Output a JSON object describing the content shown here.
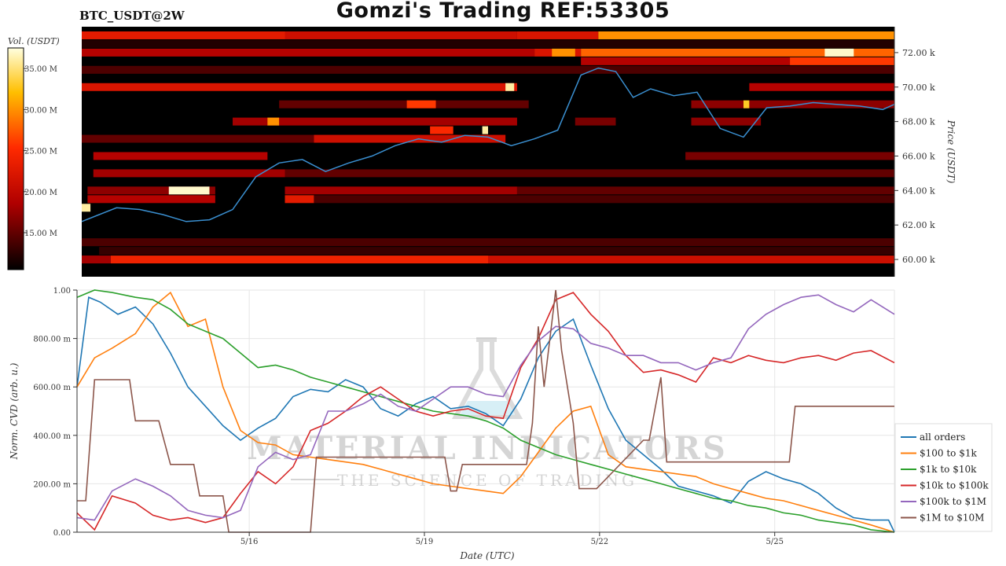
{
  "header": {
    "title": "Gomzi's Trading REF:53305",
    "pair": "BTC_USDT@2W"
  },
  "watermark": {
    "line1": "MATERIAL INDICATORS",
    "line2": "THE SCIENCE OF TRADING"
  },
  "colorbar": {
    "label": "Vol. (USDT)",
    "ticks": [
      "35.00 M",
      "30.00 M",
      "25.00 M",
      "20.00 M",
      "15.00 M"
    ],
    "tick_values": [
      35,
      30,
      25,
      20,
      15
    ],
    "range": [
      10.5,
      37.5
    ]
  },
  "chart_data": [
    {
      "type": "heatmap",
      "title": "",
      "ylabel": "Price (USDT)",
      "ylim": [
        59.0,
        73.5
      ],
      "ytick_labels": [
        "72.00 k",
        "70.00 k",
        "68.00 k",
        "66.00 k",
        "64.00 k",
        "62.00 k",
        "60.00 k"
      ],
      "ytick_values": [
        72,
        70,
        68,
        66,
        64,
        62,
        60
      ],
      "xlim": [
        0,
        14
      ],
      "price_series": {
        "x": [
          0,
          0.3,
          0.6,
          1.0,
          1.4,
          1.8,
          2.2,
          2.6,
          3.0,
          3.4,
          3.8,
          4.2,
          4.6,
          5.0,
          5.4,
          5.8,
          6.2,
          6.6,
          7.0,
          7.4,
          7.8,
          8.2,
          8.6,
          8.9,
          9.2,
          9.5,
          9.8,
          10.2,
          10.6,
          11.0,
          11.4,
          11.8,
          12.2,
          12.6,
          13.0,
          13.4,
          13.8,
          14.0
        ],
        "y": [
          62.2,
          62.6,
          63.0,
          62.9,
          62.6,
          62.2,
          62.3,
          62.9,
          64.8,
          65.6,
          65.8,
          65.1,
          65.6,
          66.0,
          66.6,
          67.0,
          66.8,
          67.2,
          67.1,
          66.6,
          67.0,
          67.5,
          70.7,
          71.1,
          70.9,
          69.4,
          69.9,
          69.5,
          69.7,
          67.6,
          67.1,
          68.8,
          68.9,
          69.1,
          69.0,
          68.9,
          68.7,
          69.0
        ]
      },
      "bands": [
        {
          "p": 73.0,
          "segs": [
            [
              0,
              3.5,
              23
            ],
            [
              3.5,
              7.5,
              21
            ],
            [
              7.5,
              8.9,
              22
            ],
            [
              8.9,
              14,
              30
            ]
          ]
        },
        {
          "p": 72.5,
          "segs": [
            [
              0,
              14,
              12
            ]
          ]
        },
        {
          "p": 72.0,
          "segs": [
            [
              0,
              7.8,
              19
            ],
            [
              7.8,
              8.6,
              22
            ],
            [
              8.6,
              14,
              28
            ]
          ]
        },
        {
          "p": 71.5,
          "segs": [
            [
              8.6,
              12.2,
              19
            ],
            [
              12.2,
              14,
              26
            ]
          ]
        },
        {
          "p": 71.0,
          "segs": [
            [
              0,
              14,
              14
            ]
          ]
        },
        {
          "p": 70.0,
          "segs": [
            [
              0,
              7.5,
              22
            ],
            [
              11.5,
              14,
              19
            ]
          ]
        },
        {
          "p": 69.0,
          "segs": [
            [
              3.4,
              7.7,
              15
            ],
            [
              10.5,
              14,
              17
            ]
          ]
        },
        {
          "p": 68.0,
          "segs": [
            [
              2.6,
              7.5,
              18
            ],
            [
              8.5,
              9.2,
              16
            ],
            [
              10.5,
              11.7,
              17
            ]
          ]
        },
        {
          "p": 67.0,
          "segs": [
            [
              0,
              4.0,
              15
            ],
            [
              4.0,
              7.3,
              21
            ]
          ]
        },
        {
          "p": 66.0,
          "segs": [
            [
              0.2,
              3.2,
              19
            ],
            [
              10.4,
              14,
              16
            ]
          ]
        },
        {
          "p": 65.0,
          "segs": [
            [
              0.2,
              3.5,
              18
            ],
            [
              3.5,
              14,
              15
            ]
          ]
        },
        {
          "p": 64.0,
          "segs": [
            [
              0.1,
              2.3,
              17
            ],
            [
              3.5,
              7.5,
              18
            ],
            [
              7.5,
              14,
              15
            ]
          ]
        },
        {
          "p": 63.5,
          "segs": [
            [
              0.1,
              2.3,
              19
            ],
            [
              3.5,
              4.0,
              23
            ],
            [
              4.0,
              14,
              14
            ]
          ]
        },
        {
          "p": 61.0,
          "segs": [
            [
              0,
              14,
              14
            ]
          ]
        },
        {
          "p": 60.5,
          "segs": [
            [
              0.3,
              14,
              13
            ]
          ]
        },
        {
          "p": 60.0,
          "segs": [
            [
              0,
              0.5,
              18
            ],
            [
              0.5,
              7.0,
              24
            ],
            [
              7.0,
              14,
              21
            ]
          ]
        }
      ],
      "hotspots": [
        {
          "x": [
            1.5,
            2.2
          ],
          "p": 64.0,
          "v": 37
        },
        {
          "x": [
            0,
            0.15
          ],
          "p": 63.0,
          "v": 36
        },
        {
          "x": [
            3.2,
            3.4
          ],
          "p": 68.0,
          "v": 30
        },
        {
          "x": [
            5.6,
            6.1
          ],
          "p": 69.0,
          "v": 26
        },
        {
          "x": [
            7.3,
            7.45
          ],
          "p": 70.0,
          "v": 36
        },
        {
          "x": [
            6.9,
            7.0
          ],
          "p": 67.5,
          "v": 36
        },
        {
          "x": [
            12.8,
            13.3
          ],
          "p": 72.0,
          "v": 37
        },
        {
          "x": [
            8.1,
            8.5
          ],
          "p": 72.0,
          "v": 30
        },
        {
          "x": [
            11.4,
            11.5
          ],
          "p": 69.0,
          "v": 33
        },
        {
          "x": [
            6.0,
            6.4
          ],
          "p": 67.5,
          "v": 25
        }
      ]
    },
    {
      "type": "line",
      "title": "",
      "xlabel": "Date (UTC)",
      "ylabel": "Norm. CVD (arb. u.)",
      "ylim": [
        0,
        1.0
      ],
      "xlim": [
        0,
        14
      ],
      "ytick_labels": [
        "1.00",
        "800.00 m",
        "600.00 m",
        "400.00 m",
        "200.00 m",
        "0.00"
      ],
      "ytick_values": [
        1.0,
        0.8,
        0.6,
        0.4,
        0.2,
        0.0
      ],
      "xtick_labels": [
        "5/16",
        "5/19",
        "5/22",
        "5/25"
      ],
      "xtick_values": [
        2.95,
        5.95,
        8.95,
        11.95
      ],
      "series": [
        {
          "name": "all orders",
          "color": "#1f77b4",
          "x": [
            0,
            0.2,
            0.4,
            0.7,
            1.0,
            1.3,
            1.6,
            1.9,
            2.2,
            2.5,
            2.8,
            3.1,
            3.4,
            3.7,
            4.0,
            4.3,
            4.6,
            4.9,
            5.2,
            5.5,
            5.8,
            6.1,
            6.4,
            6.7,
            7.0,
            7.3,
            7.6,
            7.9,
            8.2,
            8.5,
            8.8,
            9.1,
            9.4,
            9.7,
            10.0,
            10.3,
            10.6,
            10.9,
            11.2,
            11.5,
            11.8,
            12.1,
            12.4,
            12.7,
            13.0,
            13.3,
            13.6,
            13.9,
            14.0
          ],
          "y": [
            0.6,
            0.97,
            0.95,
            0.9,
            0.93,
            0.86,
            0.74,
            0.6,
            0.52,
            0.44,
            0.38,
            0.43,
            0.47,
            0.56,
            0.59,
            0.58,
            0.63,
            0.6,
            0.51,
            0.48,
            0.53,
            0.56,
            0.51,
            0.52,
            0.49,
            0.44,
            0.55,
            0.72,
            0.83,
            0.88,
            0.69,
            0.51,
            0.38,
            0.32,
            0.26,
            0.19,
            0.17,
            0.15,
            0.12,
            0.21,
            0.25,
            0.22,
            0.2,
            0.16,
            0.1,
            0.06,
            0.05,
            0.05,
            0.0
          ]
        },
        {
          "name": "$100 to $1k",
          "color": "#ff7f0e",
          "x": [
            0,
            0.3,
            0.6,
            1.0,
            1.3,
            1.6,
            1.9,
            2.2,
            2.5,
            2.8,
            3.1,
            3.4,
            3.7,
            4.0,
            4.3,
            4.6,
            4.9,
            5.2,
            5.5,
            5.8,
            6.1,
            6.4,
            6.7,
            7.0,
            7.3,
            7.6,
            7.9,
            8.2,
            8.5,
            8.8,
            9.1,
            9.4,
            9.7,
            10.0,
            10.3,
            10.6,
            10.9,
            11.2,
            11.5,
            11.8,
            12.1,
            12.4,
            12.7,
            13.0,
            13.3,
            13.6,
            14.0
          ],
          "y": [
            0.6,
            0.72,
            0.76,
            0.82,
            0.93,
            0.99,
            0.85,
            0.88,
            0.6,
            0.42,
            0.37,
            0.36,
            0.32,
            0.31,
            0.3,
            0.29,
            0.28,
            0.26,
            0.24,
            0.22,
            0.2,
            0.19,
            0.18,
            0.17,
            0.16,
            0.23,
            0.33,
            0.43,
            0.5,
            0.52,
            0.32,
            0.27,
            0.26,
            0.25,
            0.24,
            0.23,
            0.2,
            0.18,
            0.16,
            0.14,
            0.13,
            0.11,
            0.09,
            0.07,
            0.05,
            0.03,
            0.0
          ]
        },
        {
          "name": "$1k to $10k",
          "color": "#2ca02c",
          "x": [
            0,
            0.3,
            0.6,
            1.0,
            1.3,
            1.6,
            1.9,
            2.2,
            2.5,
            2.8,
            3.1,
            3.4,
            3.7,
            4.0,
            4.3,
            4.6,
            4.9,
            5.2,
            5.5,
            5.8,
            6.1,
            6.4,
            6.7,
            7.0,
            7.3,
            7.6,
            7.9,
            8.2,
            8.5,
            8.8,
            9.1,
            9.4,
            9.7,
            10.0,
            10.3,
            10.6,
            10.9,
            11.2,
            11.5,
            11.8,
            12.1,
            12.4,
            12.7,
            13.0,
            13.3,
            13.6,
            14.0
          ],
          "y": [
            0.97,
            1.0,
            0.99,
            0.97,
            0.96,
            0.92,
            0.86,
            0.83,
            0.8,
            0.74,
            0.68,
            0.69,
            0.67,
            0.64,
            0.62,
            0.6,
            0.58,
            0.56,
            0.54,
            0.52,
            0.5,
            0.49,
            0.48,
            0.46,
            0.43,
            0.38,
            0.35,
            0.32,
            0.3,
            0.28,
            0.26,
            0.24,
            0.22,
            0.2,
            0.18,
            0.16,
            0.14,
            0.13,
            0.11,
            0.1,
            0.08,
            0.07,
            0.05,
            0.04,
            0.03,
            0.01,
            0.0
          ]
        },
        {
          "name": "$10k to $100k",
          "color": "#d62728",
          "x": [
            0,
            0.3,
            0.6,
            1.0,
            1.3,
            1.6,
            1.9,
            2.2,
            2.5,
            2.8,
            3.1,
            3.4,
            3.7,
            4.0,
            4.3,
            4.6,
            4.9,
            5.2,
            5.5,
            5.8,
            6.1,
            6.4,
            6.7,
            7.0,
            7.3,
            7.6,
            7.9,
            8.2,
            8.5,
            8.8,
            9.1,
            9.4,
            9.7,
            10.0,
            10.3,
            10.6,
            10.9,
            11.2,
            11.5,
            11.8,
            12.1,
            12.4,
            12.7,
            13.0,
            13.3,
            13.6,
            14.0
          ],
          "y": [
            0.08,
            0.01,
            0.15,
            0.12,
            0.07,
            0.05,
            0.06,
            0.04,
            0.06,
            0.16,
            0.25,
            0.2,
            0.27,
            0.42,
            0.45,
            0.5,
            0.56,
            0.6,
            0.55,
            0.5,
            0.48,
            0.5,
            0.51,
            0.48,
            0.47,
            0.68,
            0.8,
            0.96,
            0.99,
            0.9,
            0.83,
            0.73,
            0.66,
            0.67,
            0.65,
            0.62,
            0.72,
            0.7,
            0.73,
            0.71,
            0.7,
            0.72,
            0.73,
            0.71,
            0.74,
            0.75,
            0.7
          ]
        },
        {
          "name": "$100k to $1M",
          "color": "#9467bd",
          "x": [
            0,
            0.3,
            0.6,
            1.0,
            1.3,
            1.6,
            1.9,
            2.2,
            2.5,
            2.8,
            3.1,
            3.4,
            3.7,
            4.0,
            4.3,
            4.6,
            4.9,
            5.2,
            5.5,
            5.8,
            6.1,
            6.4,
            6.7,
            7.0,
            7.3,
            7.6,
            7.9,
            8.2,
            8.5,
            8.8,
            9.1,
            9.4,
            9.7,
            10.0,
            10.3,
            10.6,
            10.9,
            11.2,
            11.5,
            11.8,
            12.1,
            12.4,
            12.7,
            13.0,
            13.3,
            13.6,
            14.0
          ],
          "y": [
            0.06,
            0.05,
            0.17,
            0.22,
            0.19,
            0.15,
            0.09,
            0.07,
            0.06,
            0.09,
            0.27,
            0.33,
            0.3,
            0.32,
            0.5,
            0.5,
            0.53,
            0.57,
            0.52,
            0.5,
            0.55,
            0.6,
            0.6,
            0.57,
            0.56,
            0.69,
            0.79,
            0.85,
            0.84,
            0.78,
            0.76,
            0.73,
            0.73,
            0.7,
            0.7,
            0.67,
            0.7,
            0.72,
            0.84,
            0.9,
            0.94,
            0.97,
            0.98,
            0.94,
            0.91,
            0.96,
            0.9
          ]
        },
        {
          "name": "$1M to $10M",
          "color": "#8c564b",
          "x": [
            0,
            0.15,
            0.3,
            0.4,
            0.9,
            1.0,
            1.3,
            1.4,
            1.6,
            1.7,
            2.0,
            2.1,
            2.5,
            2.6,
            3.0,
            3.1,
            4.0,
            4.1,
            5.5,
            5.6,
            6.3,
            6.4,
            6.5,
            6.6,
            7.7,
            7.8,
            7.9,
            8.0,
            8.2,
            8.3,
            8.5,
            8.6,
            8.8,
            8.9,
            9.7,
            9.8,
            10.0,
            10.1,
            11.3,
            11.4,
            12.2,
            12.3,
            14.0
          ],
          "y": [
            0.13,
            0.13,
            0.63,
            0.63,
            0.63,
            0.46,
            0.46,
            0.46,
            0.28,
            0.28,
            0.28,
            0.15,
            0.15,
            0.0,
            0.0,
            0.0,
            0.0,
            0.31,
            0.31,
            0.31,
            0.31,
            0.17,
            0.17,
            0.28,
            0.28,
            0.45,
            0.85,
            0.6,
            1.0,
            0.75,
            0.45,
            0.18,
            0.18,
            0.18,
            0.38,
            0.38,
            0.64,
            0.29,
            0.29,
            0.29,
            0.29,
            0.52,
            0.52
          ]
        }
      ]
    }
  ]
}
